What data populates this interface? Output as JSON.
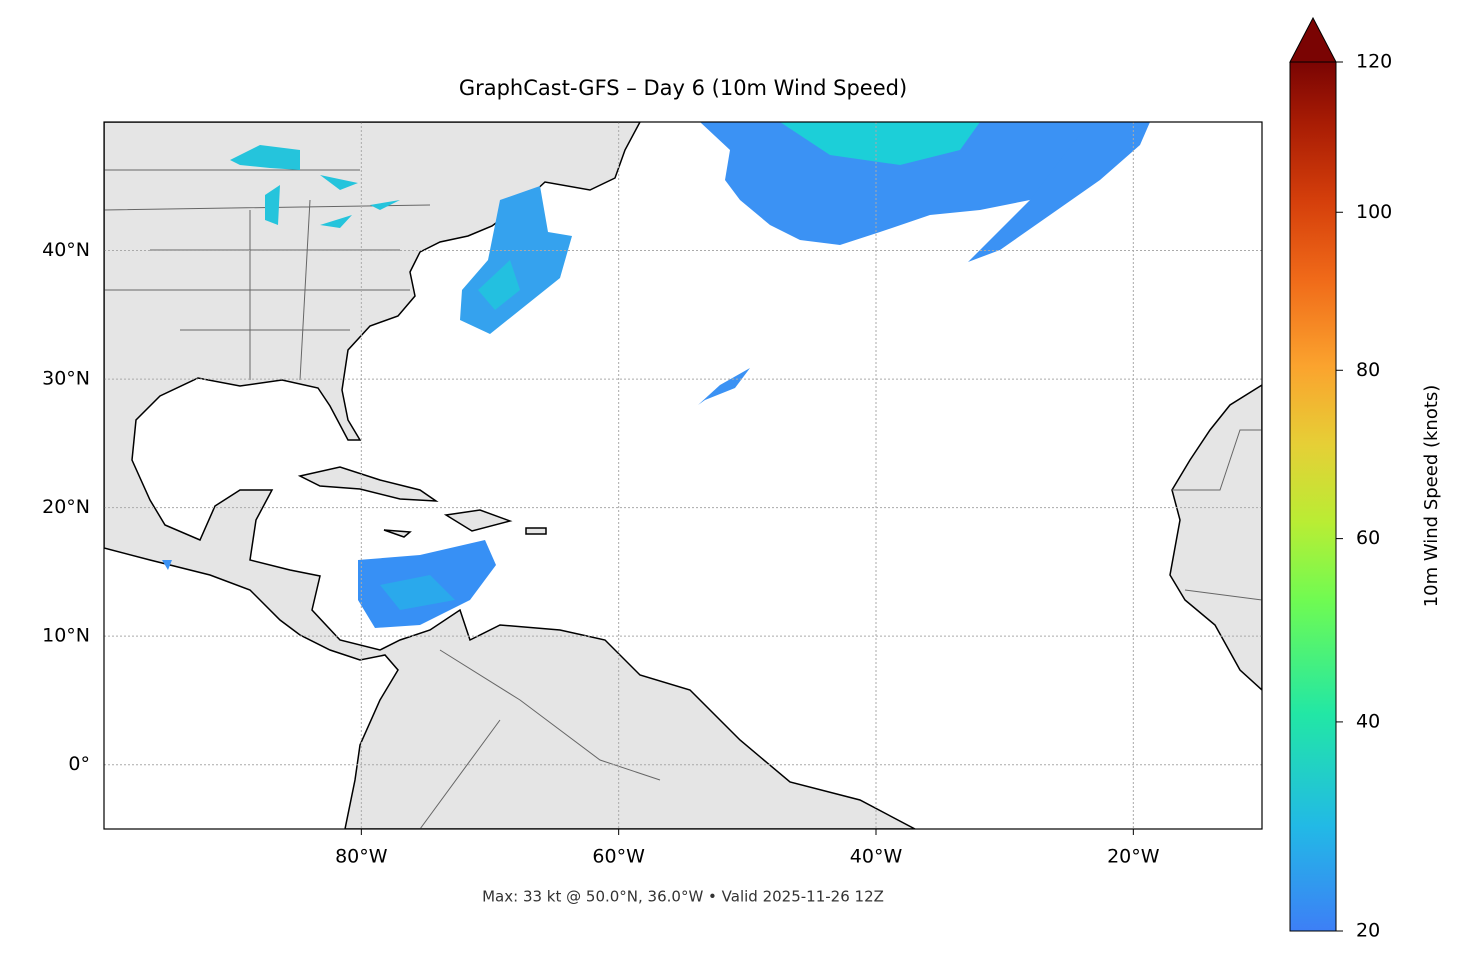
{
  "chart_data": {
    "type": "map",
    "title": "GraphCast-GFS – Day 6 (10m Wind Speed)",
    "footnote": "Max: 33 kt @ 50.0°N, 36.0°W • Valid 2025-11-26 12Z",
    "xlim": [
      -100,
      -10
    ],
    "ylim": [
      -5,
      50
    ],
    "xticks": [
      {
        "value": -80,
        "label": "80°W"
      },
      {
        "value": -60,
        "label": "60°W"
      },
      {
        "value": -40,
        "label": "40°W"
      },
      {
        "value": -20,
        "label": "20°W"
      }
    ],
    "yticks": [
      {
        "value": 0,
        "label": "0°"
      },
      {
        "value": 10,
        "label": "10°N"
      },
      {
        "value": 20,
        "label": "20°N"
      },
      {
        "value": 30,
        "label": "30°N"
      },
      {
        "value": 40,
        "label": "40°N"
      }
    ],
    "grid": true,
    "colorbar": {
      "label": "10m Wind Speed (knots)",
      "lim": [
        20,
        120
      ],
      "ticks": [
        20,
        40,
        60,
        80,
        100,
        120
      ],
      "gamma": 0.75,
      "extend": "max"
    }
  }
}
